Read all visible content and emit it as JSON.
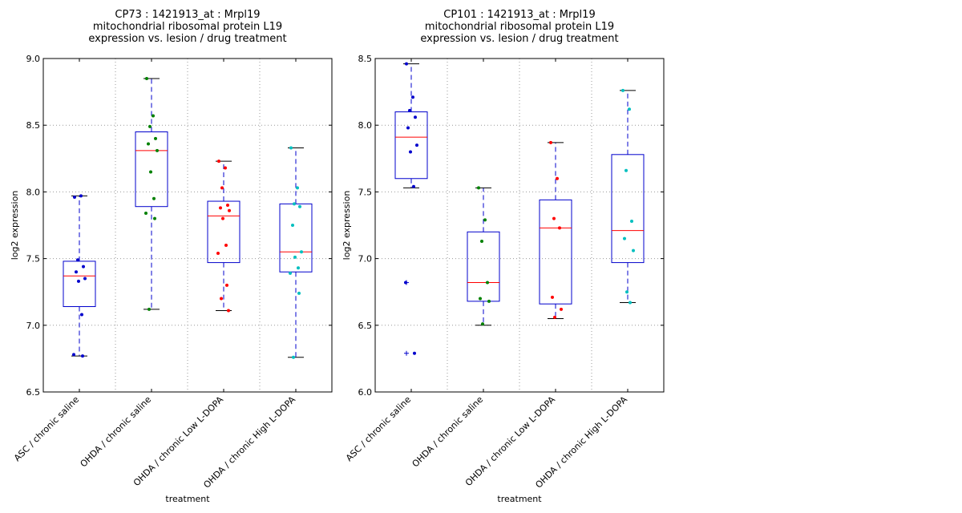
{
  "chart_data": [
    {
      "type": "box",
      "title": [
        "CP73 : 1421913_at : Mrpl19",
        "mitochondrial ribosomal protein L19",
        "expression vs. lesion / drug treatment"
      ],
      "xlabel": "treatment",
      "ylabel": "log2 expression",
      "ylim": [
        6.5,
        9.0
      ],
      "yticks": [
        "6.5",
        "7.0",
        "7.5",
        "8.0",
        "8.5",
        "9.0"
      ],
      "grid": true,
      "categories": [
        "ASC / chronic saline",
        "OHDA / chronic saline",
        "OHDA / chronic Low L-DOPA",
        "OHDA / chronic High L-DOPA"
      ],
      "boxes": [
        {
          "whisker_low": 6.77,
          "q1": 7.14,
          "median": 7.37,
          "q3": 7.48,
          "whisker_high": 7.97,
          "outliers": []
        },
        {
          "whisker_low": 7.12,
          "q1": 7.89,
          "median": 8.31,
          "q3": 8.45,
          "whisker_high": 8.85,
          "outliers": []
        },
        {
          "whisker_low": 7.11,
          "q1": 7.47,
          "median": 7.82,
          "q3": 7.93,
          "whisker_high": 8.23,
          "outliers": []
        },
        {
          "whisker_low": 6.76,
          "q1": 7.4,
          "median": 7.55,
          "q3": 7.91,
          "whisker_high": 8.33,
          "outliers": []
        }
      ],
      "points": [
        {
          "color": "#0000cc",
          "values": [
            7.96,
            7.97,
            7.49,
            7.44,
            7.4,
            7.35,
            7.33,
            7.08,
            6.78,
            6.77
          ]
        },
        {
          "color": "#008000",
          "values": [
            8.85,
            8.57,
            8.49,
            8.4,
            8.36,
            8.31,
            8.15,
            7.95,
            7.84,
            7.8,
            7.12
          ]
        },
        {
          "color": "#ff0000",
          "values": [
            8.23,
            8.18,
            8.03,
            7.9,
            7.88,
            7.86,
            7.8,
            7.6,
            7.54,
            7.3,
            7.2,
            7.11
          ]
        },
        {
          "color": "#00bfbf",
          "values": [
            8.33,
            8.03,
            7.91,
            7.89,
            7.75,
            7.55,
            7.51,
            7.43,
            7.39,
            7.24,
            6.76
          ]
        }
      ]
    },
    {
      "type": "box",
      "title": [
        "CP101 : 1421913_at : Mrpl19",
        "mitochondrial ribosomal protein L19",
        "expression vs. lesion / drug treatment"
      ],
      "xlabel": "treatment",
      "ylabel": "log2 expression",
      "ylim": [
        6.0,
        8.5
      ],
      "yticks": [
        "6.0",
        "6.5",
        "7.0",
        "7.5",
        "8.0",
        "8.5"
      ],
      "grid": true,
      "categories": [
        "ASC / chronic saline",
        "OHDA / chronic saline",
        "OHDA / chronic Low L-DOPA",
        "OHDA / chronic High L-DOPA"
      ],
      "boxes": [
        {
          "whisker_low": 7.53,
          "q1": 7.6,
          "median": 7.91,
          "q3": 8.1,
          "whisker_high": 8.46,
          "outliers": [
            6.82,
            6.29
          ]
        },
        {
          "whisker_low": 6.5,
          "q1": 6.68,
          "median": 6.82,
          "q3": 7.2,
          "whisker_high": 7.53,
          "outliers": []
        },
        {
          "whisker_low": 6.55,
          "q1": 6.66,
          "median": 7.23,
          "q3": 7.44,
          "whisker_high": 7.87,
          "outliers": []
        },
        {
          "whisker_low": 6.67,
          "q1": 6.97,
          "median": 7.21,
          "q3": 7.78,
          "whisker_high": 8.26,
          "outliers": []
        }
      ],
      "points": [
        {
          "color": "#0000cc",
          "values": [
            8.46,
            8.21,
            8.11,
            8.06,
            7.98,
            7.85,
            7.8,
            7.54,
            6.82,
            6.29
          ]
        },
        {
          "color": "#008000",
          "values": [
            7.53,
            7.29,
            7.13,
            6.82,
            6.7,
            6.68,
            6.51
          ]
        },
        {
          "color": "#ff0000",
          "values": [
            7.87,
            7.6,
            7.3,
            7.23,
            6.71,
            6.62,
            6.56
          ]
        },
        {
          "color": "#00bfbf",
          "values": [
            8.26,
            8.12,
            7.66,
            7.28,
            7.15,
            7.06,
            6.75,
            6.67
          ]
        }
      ]
    }
  ]
}
